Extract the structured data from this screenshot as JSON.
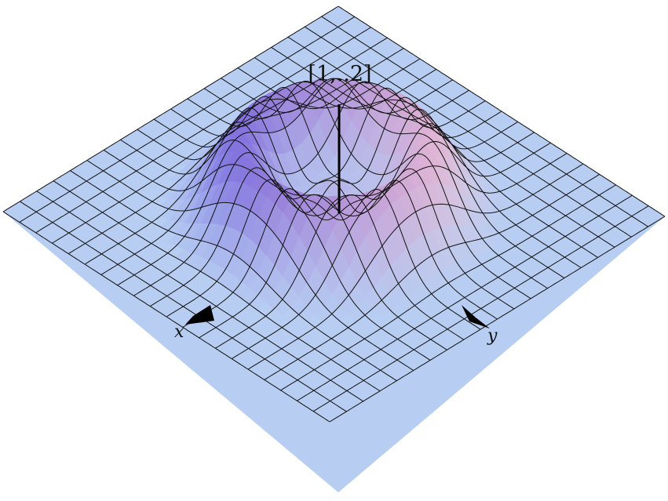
{
  "figure": {
    "labels": {
      "vertical_axis": "[1,..2]",
      "x_axis": "x",
      "y_axis": "y"
    },
    "colors": {
      "background": "#ffffff",
      "flat_surface": "#b7cdf2",
      "ring_pink": "#f3b8cf",
      "ring_purple": "#8a5fd6",
      "ring_blue": "#4d5be8",
      "highlight": "#fff6ee",
      "mesh_lines": "#111111",
      "axis": "#000000"
    },
    "icons": [
      "x-axis-arrow-icon",
      "y-axis-arrow-icon"
    ]
  }
}
